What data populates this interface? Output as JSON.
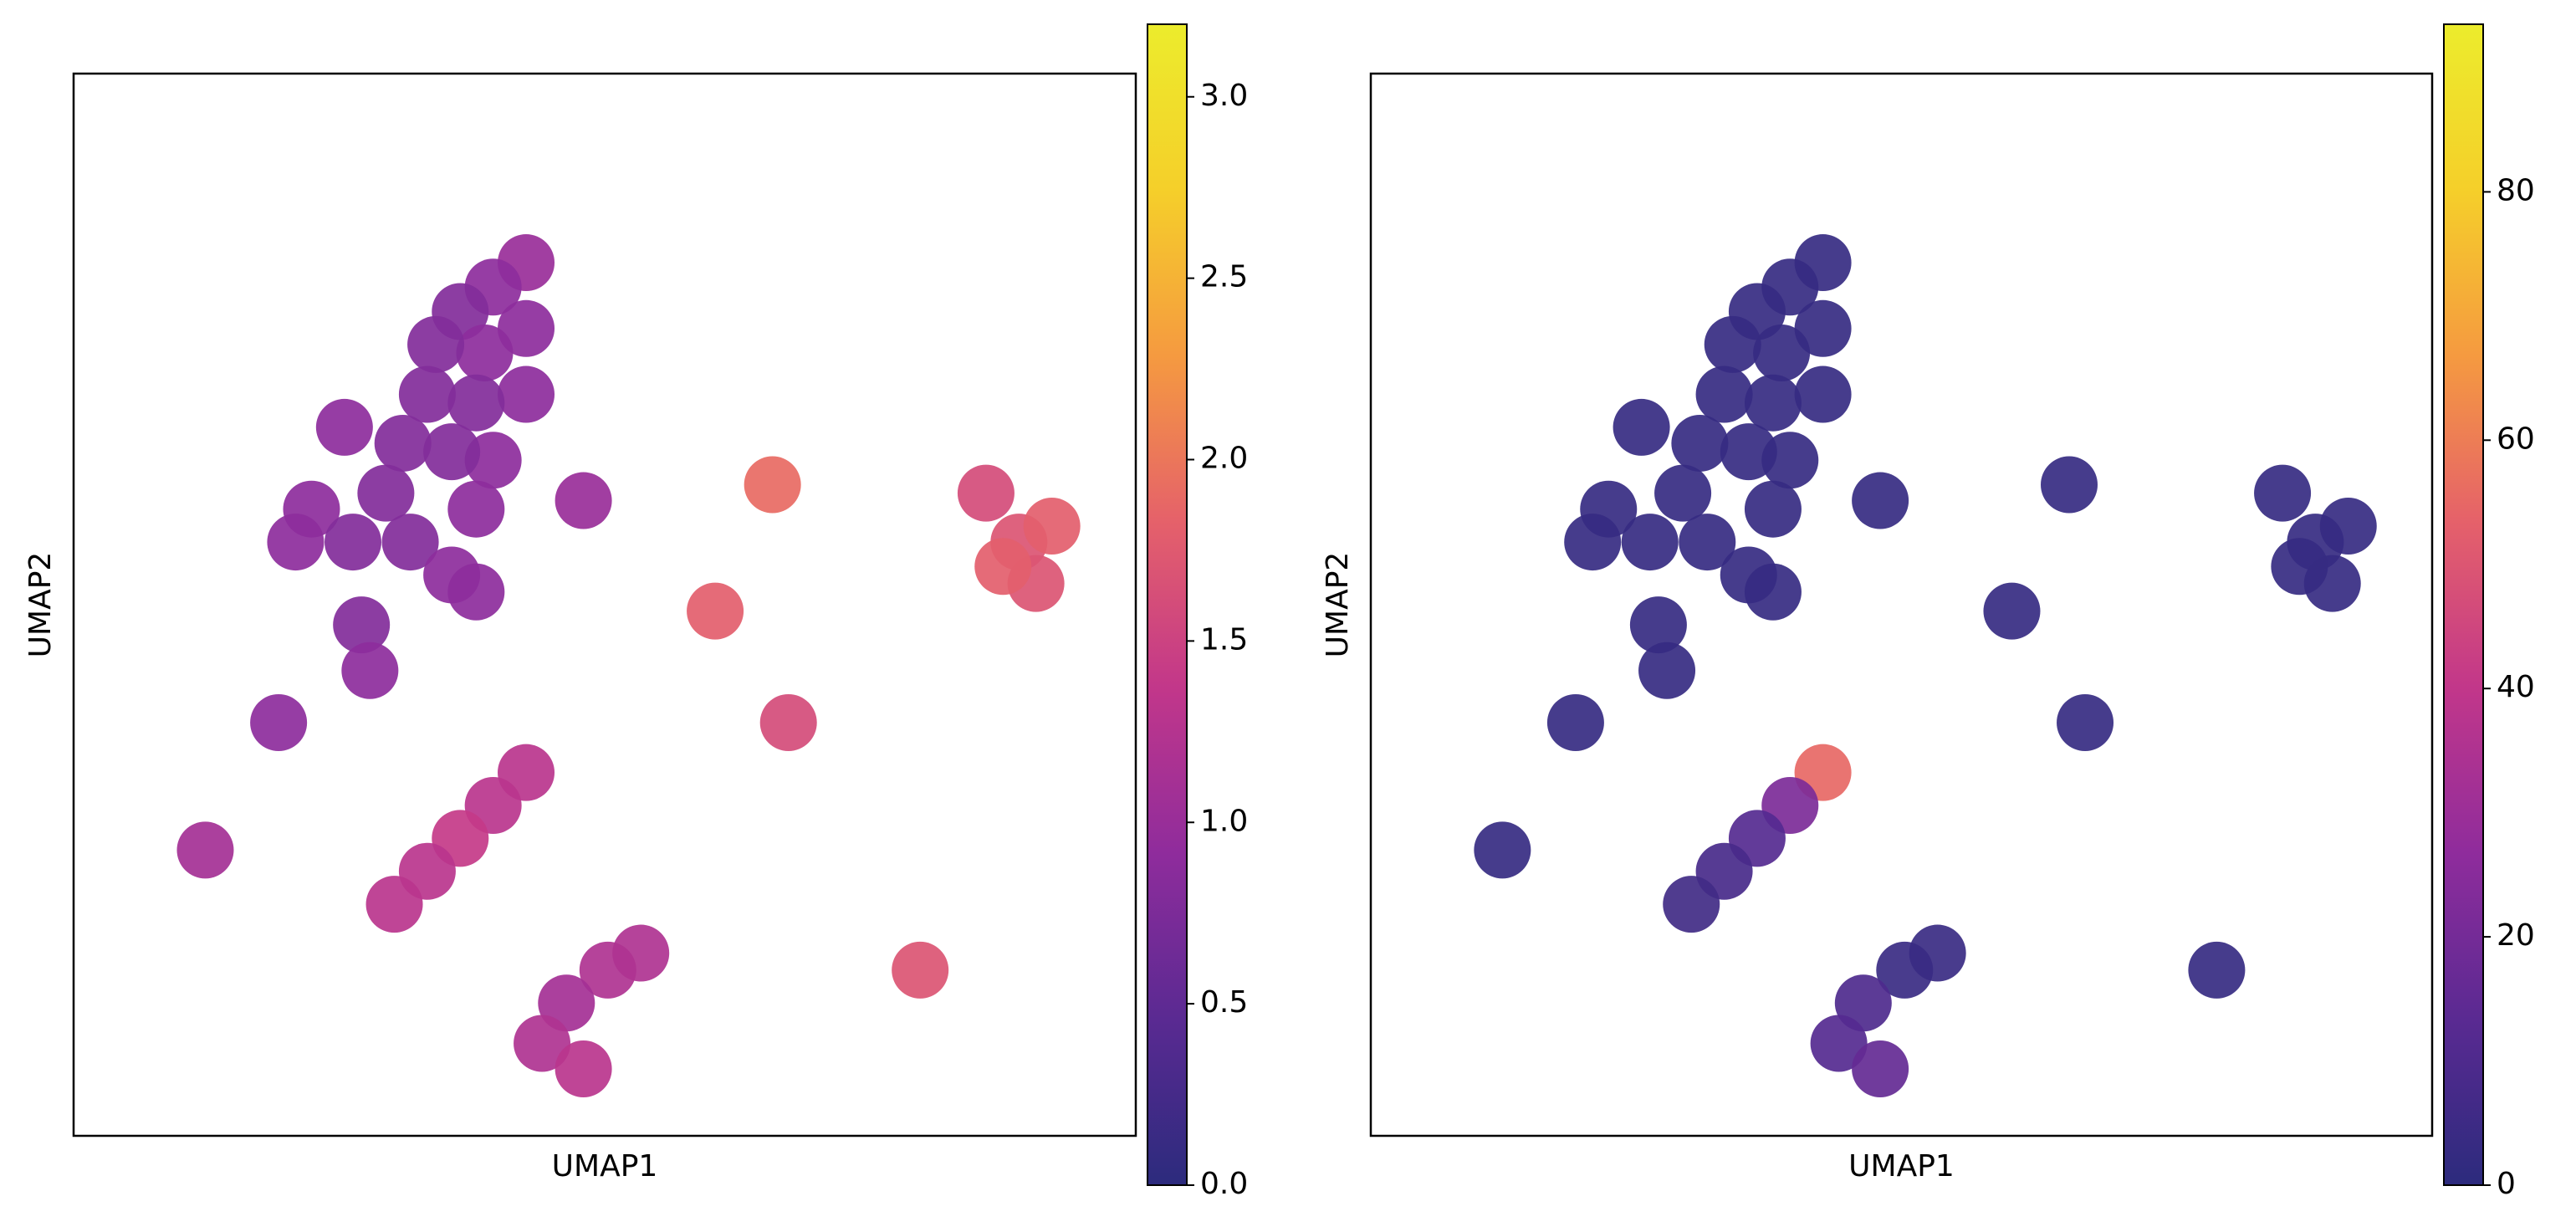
{
  "chart_data": [
    {
      "type": "scatter",
      "xlabel": "UMAP1",
      "ylabel": "UMAP2",
      "xlim": [
        0,
        100
      ],
      "ylim": [
        0,
        100
      ],
      "x": [
        42.6,
        39.5,
        36.4,
        42.6,
        38.7,
        34.1,
        42.6,
        37.9,
        33.3,
        39.5,
        35.6,
        31.0,
        29.4,
        37.9,
        25.5,
        22.4,
        20.9,
        26.3,
        31.7,
        35.6,
        37.9,
        48.0,
        65.8,
        60.4,
        67.3,
        89.0,
        92.1,
        85.9,
        90.6,
        87.5,
        27.1,
        27.9,
        19.3,
        12.4,
        42.6,
        39.5,
        36.4,
        33.3,
        30.2,
        50.3,
        53.4,
        46.4,
        44.1,
        48.0,
        79.7
      ],
      "y": [
        82.2,
        79.9,
        77.6,
        76.0,
        73.7,
        74.5,
        69.8,
        69.0,
        69.8,
        63.6,
        64.4,
        65.2,
        60.5,
        59.0,
        66.7,
        59.0,
        55.9,
        55.9,
        55.9,
        52.8,
        51.2,
        59.8,
        61.3,
        49.4,
        38.9,
        55.9,
        57.4,
        60.5,
        52.0,
        53.6,
        48.1,
        43.8,
        38.9,
        26.9,
        34.2,
        31.1,
        28.0,
        24.9,
        21.8,
        15.6,
        17.2,
        12.5,
        8.7,
        6.3,
        15.6
      ],
      "values": [
        1.0,
        0.9,
        0.8,
        0.9,
        0.9,
        0.8,
        0.9,
        0.8,
        0.8,
        0.9,
        0.8,
        0.8,
        0.8,
        0.9,
        0.9,
        0.9,
        0.9,
        0.8,
        0.8,
        0.9,
        0.9,
        1.0,
        1.9,
        1.8,
        1.6,
        1.7,
        1.8,
        1.6,
        1.7,
        1.8,
        0.8,
        0.9,
        0.9,
        1.1,
        1.3,
        1.3,
        1.4,
        1.3,
        1.3,
        1.2,
        1.2,
        1.1,
        1.2,
        1.3,
        1.7
      ],
      "clim": [
        0,
        3.2
      ],
      "cticks": [
        {
          "value": 0,
          "label": "0.0"
        },
        0.5,
        {
          "value": 1,
          "label": "1.0"
        },
        1.5,
        {
          "value": 2,
          "label": "2.0"
        },
        2.5,
        {
          "value": 3,
          "label": "3.0"
        }
      ],
      "colormap": [
        "#2c2b7d",
        "#5a2a92",
        "#8f2c9c",
        "#c2378a",
        "#e5616a",
        "#f59a40",
        "#f5cf2a",
        "#ecec2c"
      ]
    },
    {
      "type": "scatter",
      "xlabel": "UMAP1",
      "ylabel": "UMAP2",
      "xlim": [
        0,
        100
      ],
      "ylim": [
        0,
        100
      ],
      "x": [
        42.6,
        39.5,
        36.4,
        42.6,
        38.7,
        34.1,
        42.6,
        37.9,
        33.3,
        39.5,
        35.6,
        31.0,
        29.4,
        37.9,
        25.5,
        22.4,
        20.9,
        26.3,
        31.7,
        35.6,
        37.9,
        48.0,
        65.8,
        60.4,
        67.3,
        89.0,
        92.1,
        85.9,
        90.6,
        87.5,
        27.1,
        27.9,
        19.3,
        12.4,
        42.6,
        39.5,
        36.4,
        33.3,
        30.2,
        50.3,
        53.4,
        46.4,
        44.1,
        48.0,
        79.7
      ],
      "y": [
        82.2,
        79.9,
        77.6,
        76.0,
        73.7,
        74.5,
        69.8,
        69.0,
        69.8,
        63.6,
        64.4,
        65.2,
        60.5,
        59.0,
        66.7,
        59.0,
        55.9,
        55.9,
        55.9,
        52.8,
        51.2,
        59.8,
        61.3,
        49.4,
        38.9,
        55.9,
        57.4,
        60.5,
        52.0,
        53.6,
        48.1,
        43.8,
        38.9,
        26.9,
        34.2,
        31.1,
        28.0,
        24.9,
        21.8,
        15.6,
        17.2,
        12.5,
        8.7,
        6.3,
        15.6
      ],
      "values": [
        3,
        3,
        3,
        3,
        3,
        3,
        3,
        3,
        3,
        3,
        3,
        3,
        3,
        3,
        3,
        3,
        3,
        3,
        3,
        3,
        3,
        3,
        3,
        3,
        3,
        3,
        3,
        3,
        3,
        3,
        3,
        3,
        3,
        3,
        55,
        22,
        12,
        8,
        6,
        4,
        4,
        10,
        12,
        16,
        3
      ],
      "clim": [
        0,
        93.5
      ],
      "cticks": [
        0,
        20,
        40,
        60,
        80
      ],
      "colormap": [
        "#2c2b7d",
        "#5a2a92",
        "#8f2c9c",
        "#c2378a",
        "#e5616a",
        "#f59a40",
        "#f5cf2a",
        "#ecec2c"
      ]
    }
  ]
}
